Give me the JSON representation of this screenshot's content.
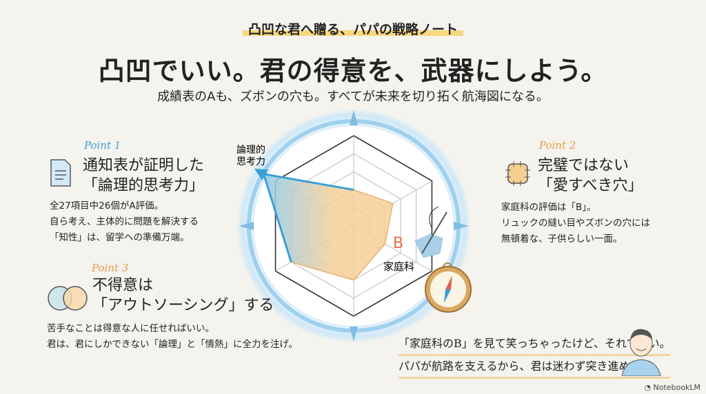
{
  "header": {
    "banner": "凸凹な君へ贈る、パパの戦略ノート",
    "title": "凸凹でいい。君の得意を、武器にしよう。",
    "subtitle": "成績表のAも、ズボンの穴も。すべてが未来を切り拓く航海図になる。"
  },
  "points": [
    {
      "label": "Point 1",
      "heading": [
        "通知表が証明した",
        "「論理的思考力」"
      ],
      "body": [
        "全27項目中26個がA評価。",
        "自ら考え、主体的に問題を解決する",
        "「知性」は、留学への準備万端。"
      ],
      "icon": "document-icon",
      "color": "#3a9fd6"
    },
    {
      "label": "Point 2",
      "heading": [
        "完璧ではない",
        "「愛すべき穴」"
      ],
      "body": [
        "家庭科の評価は「B」。",
        "リュックの縫い目やズボンの穴には",
        "無頓着な、子供らしい一面。"
      ],
      "icon": "patch-icon",
      "color": "#e39a4a"
    },
    {
      "label": "Point 3",
      "heading": [
        "不得意は",
        "「アウトソーシング」する"
      ],
      "body": [
        "苦手なことは得意な人に任せればいい。",
        "君は、君にしかできない「論理」と「情熱」に全力を注げ。"
      ],
      "icon": "venn-icon",
      "color": "#e39a4a"
    }
  ],
  "radar": {
    "axis_labels": {
      "logic": "論理的\n思考力",
      "home_ec": "家庭科"
    },
    "logic_label_lines": [
      "論理的",
      "思考力"
    ],
    "home_ec_label": "家庭科",
    "grade": "B",
    "values": [
      0.4,
      0.5,
      0.4,
      0.6,
      0.8,
      1.15
    ],
    "colors": {
      "fill": "#f5c98e",
      "highlight": "#3a9fd6",
      "grade": "#e5704a"
    }
  },
  "quote": {
    "lines": [
      "「家庭科のB」を見て笑っちゃったけど、それでいい。",
      "パパが航路を支えるから、君は迷わず突き進め。"
    ]
  },
  "footer": {
    "brand": "NotebookLM"
  }
}
